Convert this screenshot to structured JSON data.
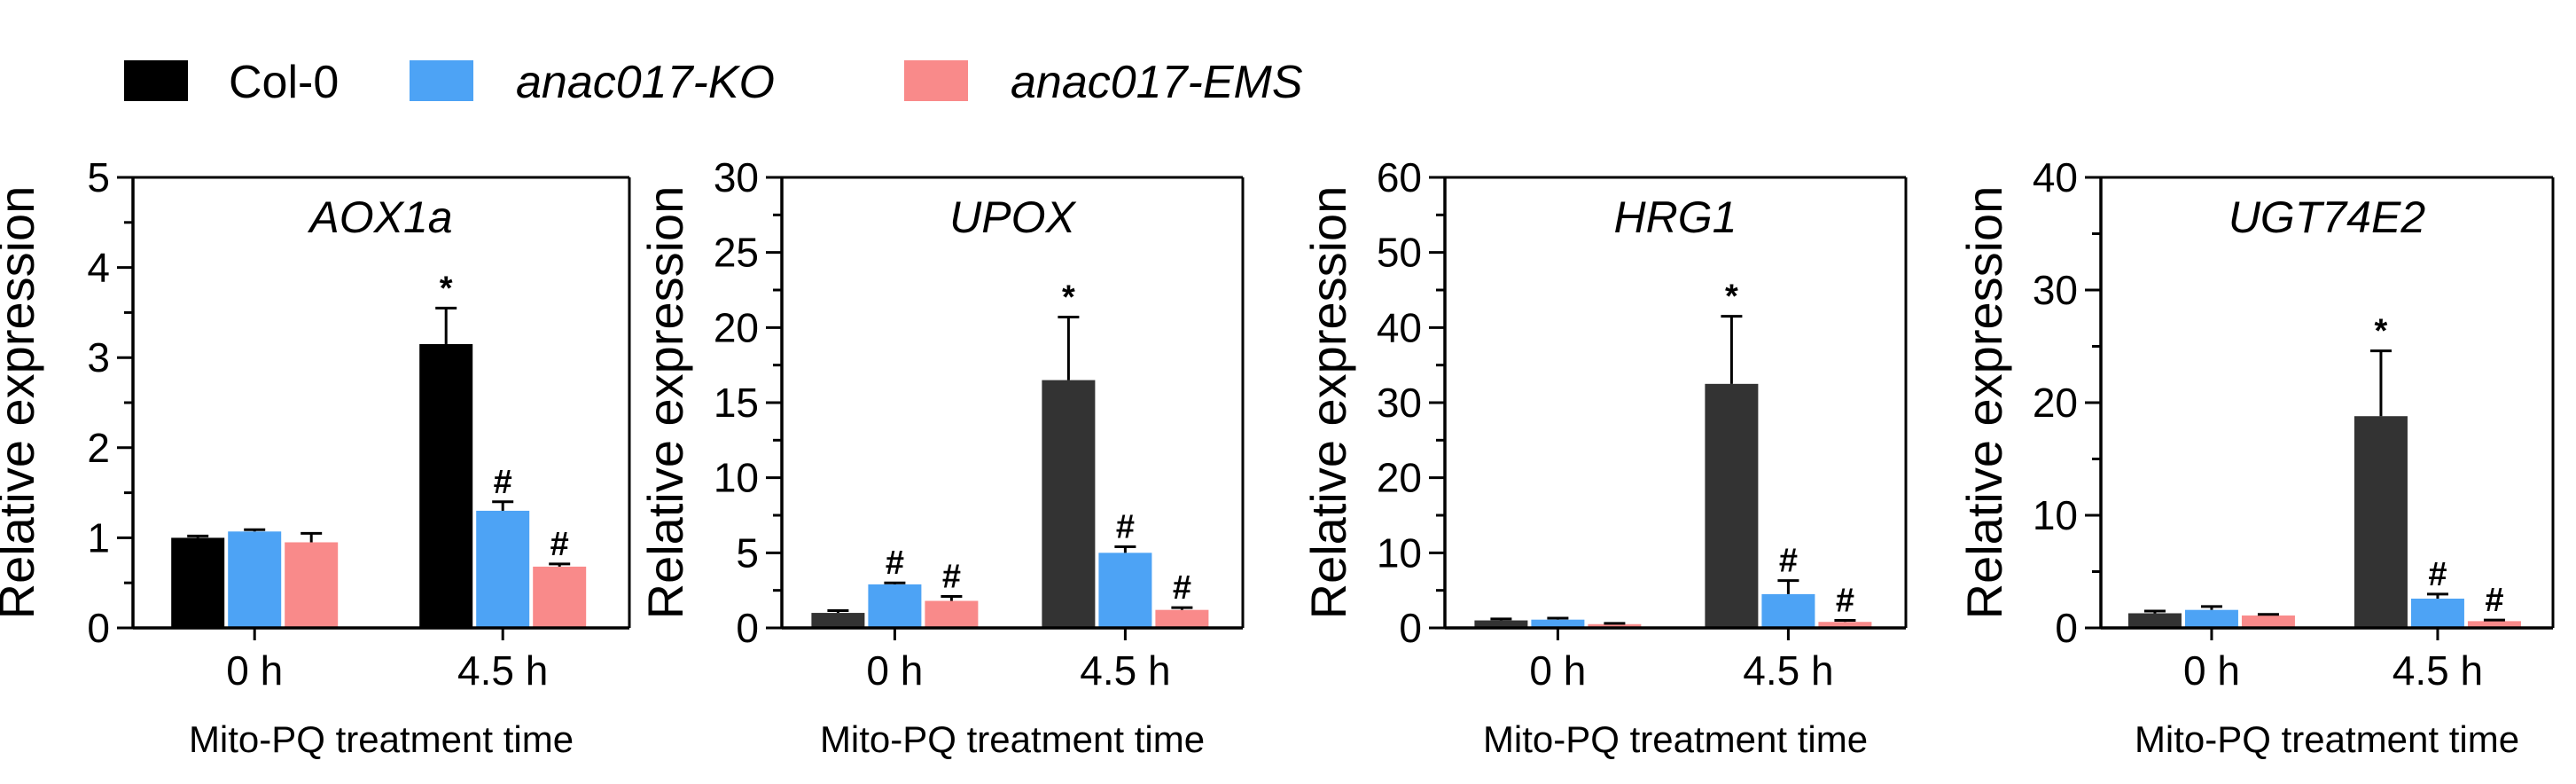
{
  "legend": [
    {
      "name": "Col-0",
      "color": "#000000",
      "italic": false
    },
    {
      "name": "anac017-KO",
      "color": "#4da3f5",
      "italic": true
    },
    {
      "name": "anac017-EMS",
      "color": "#f98a8a",
      "italic": true
    }
  ],
  "chart_data": [
    {
      "type": "bar",
      "title": "AOX1a",
      "ylabel": "Relative expression",
      "xlabel": "Mito-PQ treatment time",
      "categories": [
        "0 h",
        "4.5 h"
      ],
      "ylim": [
        0,
        5
      ],
      "yticks": [
        0,
        1,
        2,
        3,
        4,
        5
      ],
      "ytick_labels": [
        "0",
        "1",
        "2",
        "3",
        "4",
        "5"
      ],
      "series": [
        {
          "name": "Col-0",
          "color": "#000000",
          "values": [
            1.0,
            3.15
          ],
          "errors": [
            0.02,
            0.4
          ],
          "annotations": [
            "",
            "*"
          ]
        },
        {
          "name": "anac017-KO",
          "color": "#4da3f5",
          "values": [
            1.07,
            1.3
          ],
          "errors": [
            0.02,
            0.1
          ],
          "annotations": [
            "",
            "#"
          ]
        },
        {
          "name": "anac017-EMS",
          "color": "#f98a8a",
          "values": [
            0.95,
            0.68
          ],
          "errors": [
            0.1,
            0.03
          ],
          "annotations": [
            "",
            "#"
          ]
        }
      ]
    },
    {
      "type": "bar",
      "title": "UPOX",
      "ylabel": "Relative expression",
      "xlabel": "Mito-PQ treatment time",
      "categories": [
        "0 h",
        "4.5 h"
      ],
      "ylim": [
        0,
        30
      ],
      "yticks": [
        0,
        5,
        10,
        15,
        20,
        25,
        30
      ],
      "ytick_labels": [
        "0",
        "5",
        "10",
        "15",
        "20",
        "25",
        "30"
      ],
      "series": [
        {
          "name": "Col-0",
          "color": "#333333",
          "values": [
            1.0,
            16.5
          ],
          "errors": [
            0.15,
            4.2
          ],
          "annotations": [
            "",
            "*"
          ]
        },
        {
          "name": "anac017-KO",
          "color": "#4da3f5",
          "values": [
            2.9,
            5.0
          ],
          "errors": [
            0.1,
            0.4
          ],
          "annotations": [
            "#",
            "#"
          ]
        },
        {
          "name": "anac017-EMS",
          "color": "#f98a8a",
          "values": [
            1.8,
            1.2
          ],
          "errors": [
            0.3,
            0.15
          ],
          "annotations": [
            "#",
            "#"
          ]
        }
      ]
    },
    {
      "type": "bar",
      "title": "HRG1",
      "ylabel": "Relative expression",
      "xlabel": "Mito-PQ treatment time",
      "categories": [
        "0 h",
        "4.5 h"
      ],
      "ylim": [
        0,
        60
      ],
      "yticks": [
        0,
        10,
        20,
        30,
        40,
        50,
        60
      ],
      "ytick_labels": [
        "0",
        "10",
        "20",
        "30",
        "40",
        "50",
        "60"
      ],
      "series": [
        {
          "name": "Col-0",
          "color": "#333333",
          "values": [
            1.0,
            32.5
          ],
          "errors": [
            0.2,
            9.0
          ],
          "annotations": [
            "",
            "*"
          ]
        },
        {
          "name": "anac017-KO",
          "color": "#4da3f5",
          "values": [
            1.1,
            4.5
          ],
          "errors": [
            0.2,
            1.8
          ],
          "annotations": [
            "",
            "#"
          ]
        },
        {
          "name": "anac017-EMS",
          "color": "#f98a8a",
          "values": [
            0.5,
            0.8
          ],
          "errors": [
            0.1,
            0.2
          ],
          "annotations": [
            "",
            "#"
          ]
        }
      ]
    },
    {
      "type": "bar",
      "title": "UGT74E2",
      "ylabel": "Relative expression",
      "xlabel": "Mito-PQ treatment time",
      "categories": [
        "0 h",
        "4.5 h"
      ],
      "ylim": [
        0,
        40
      ],
      "yticks": [
        0,
        10,
        20,
        30,
        40
      ],
      "ytick_labels": [
        "0",
        "10",
        "20",
        "30",
        "40"
      ],
      "series": [
        {
          "name": "Col-0",
          "color": "#333333",
          "values": [
            1.3,
            18.8
          ],
          "errors": [
            0.2,
            5.8
          ],
          "annotations": [
            "",
            "*"
          ]
        },
        {
          "name": "anac017-KO",
          "color": "#4da3f5",
          "values": [
            1.6,
            2.6
          ],
          "errors": [
            0.3,
            0.4
          ],
          "annotations": [
            "",
            "#"
          ]
        },
        {
          "name": "anac017-EMS",
          "color": "#f98a8a",
          "values": [
            1.1,
            0.6
          ],
          "errors": [
            0.1,
            0.1
          ],
          "annotations": [
            "",
            "#"
          ]
        }
      ]
    }
  ]
}
